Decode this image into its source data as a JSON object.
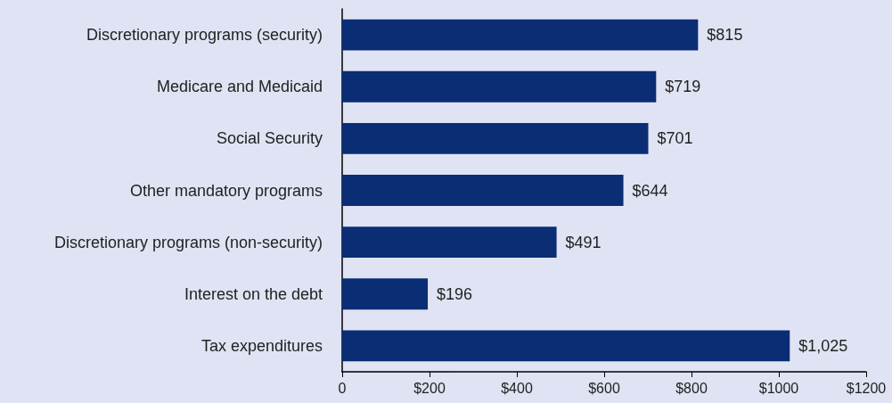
{
  "chart_data": {
    "type": "bar",
    "orientation": "horizontal",
    "categories": [
      "Discretionary programs (security)",
      "Medicare and Medicaid",
      "Social Security",
      "Other mandatory programs",
      "Discretionary programs (non-security)",
      "Interest on the debt",
      "Tax expenditures"
    ],
    "values": [
      815,
      719,
      701,
      644,
      491,
      196,
      1025
    ],
    "value_labels": [
      "$815",
      "$719",
      "$701",
      "$644",
      "$491",
      "$196",
      "$1,025"
    ],
    "color": "#0a2d74",
    "xlim": [
      0,
      1200
    ],
    "xticks": [
      0,
      {
        "value": 200,
        "label": "$200"
      },
      {
        "value": 400,
        "label": "$400"
      },
      {
        "value": 600,
        "label": "$600"
      },
      {
        "value": 800,
        "label": "$800"
      },
      {
        "value": 1000,
        "label": "$1000"
      },
      {
        "value": 1200,
        "label": "$1200"
      }
    ],
    "grid": false
  }
}
